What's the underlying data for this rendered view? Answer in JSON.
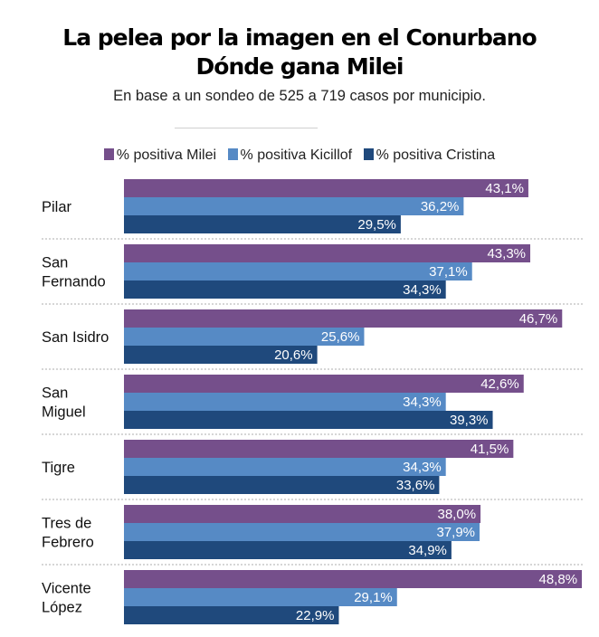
{
  "header": {
    "title_line1": "La pelea por la imagen en el Conurbano",
    "title_line2": "Dónde gana Milei",
    "subtitle": "En base a un sondeo de 525 a 719 casos por municipio."
  },
  "legend": [
    {
      "label": "% positiva Milei",
      "color": "#754f8b"
    },
    {
      "label": "% positiva Kicillof",
      "color": "#568ac5"
    },
    {
      "label": "% positiva Cristina",
      "color": "#1f497c"
    }
  ],
  "chart_data": {
    "type": "bar",
    "orientation": "horizontal",
    "title": "La pelea por la imagen en el Conurbano — Dónde gana Milei",
    "subtitle": "En base a un sondeo de 525 a 719 casos por municipio.",
    "xlabel": "",
    "ylabel": "",
    "xlim": [
      0,
      50
    ],
    "grid": false,
    "legend_position": "top",
    "categories": [
      [
        "Pilar"
      ],
      [
        "San",
        "Fernando"
      ],
      [
        "San Isidro"
      ],
      [
        "San",
        "Miguel"
      ],
      [
        "Tigre"
      ],
      [
        "Tres de",
        "Febrero"
      ],
      [
        "Vicente",
        "López"
      ]
    ],
    "series": [
      {
        "name": "% positiva Milei",
        "color": "#754f8b",
        "values": [
          43.1,
          43.3,
          46.7,
          42.6,
          41.5,
          38.0,
          48.8
        ],
        "labels": [
          "43,1%",
          "43,3%",
          "46,7%",
          "42,6%",
          "41,5%",
          "38,0%",
          "48,8%"
        ]
      },
      {
        "name": "% positiva Kicillof",
        "color": "#568ac5",
        "values": [
          36.2,
          37.1,
          25.6,
          34.3,
          34.3,
          37.9,
          29.1
        ],
        "labels": [
          "36,2%",
          "37,1%",
          "25,6%",
          "34,3%",
          "34,3%",
          "37,9%",
          "29,1%"
        ]
      },
      {
        "name": "% positiva Cristina",
        "color": "#1f497c",
        "values": [
          29.5,
          34.3,
          20.6,
          39.3,
          33.6,
          34.9,
          22.9
        ],
        "labels": [
          "29,5%",
          "34,3%",
          "20,6%",
          "39,3%",
          "33,6%",
          "34,9%",
          "22,9%"
        ]
      }
    ]
  }
}
